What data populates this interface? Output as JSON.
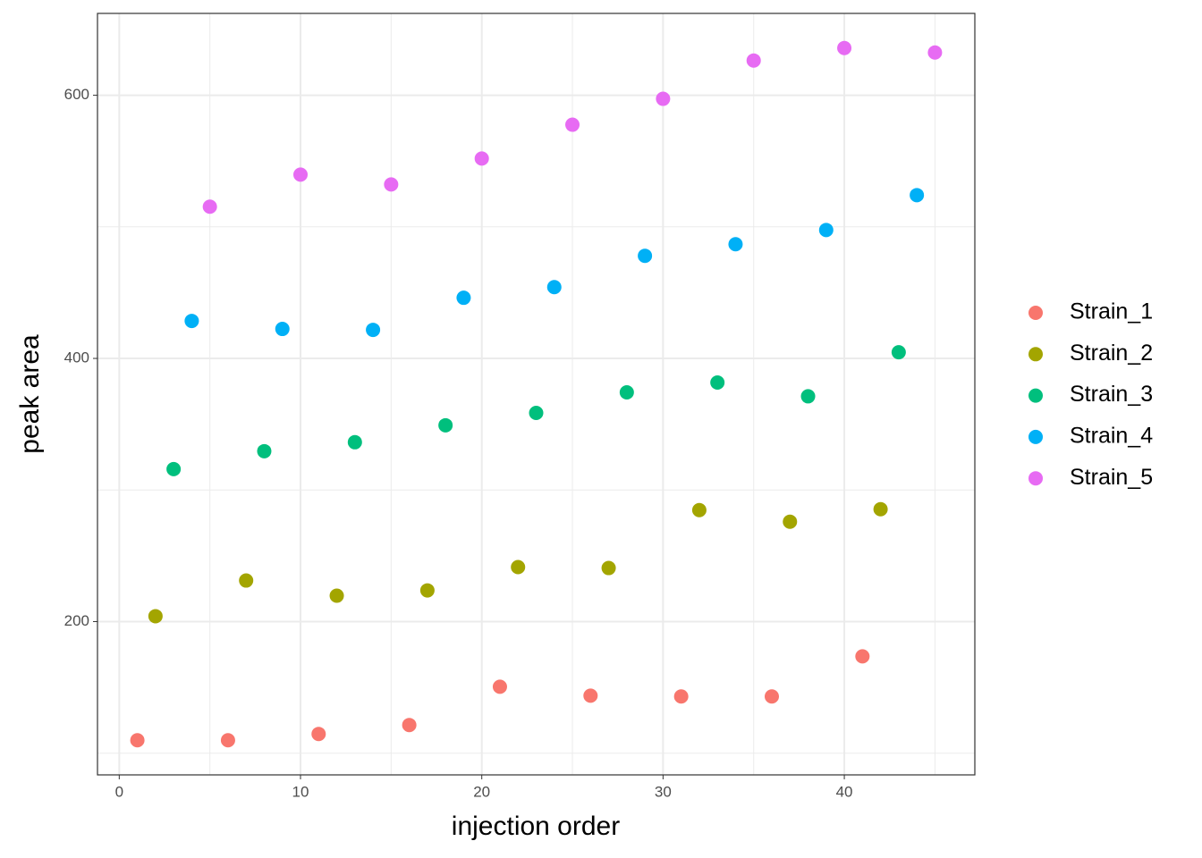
{
  "chart_data": {
    "type": "scatter",
    "x_label": "injection order",
    "y_label": "peak area",
    "xlim": [
      -1.2,
      47.2
    ],
    "ylim": [
      83.5,
      662.2
    ],
    "xticks": [
      0,
      10,
      20,
      30,
      40
    ],
    "yticks": [
      200,
      400,
      600
    ],
    "x_minor_grid": [
      5,
      15,
      25,
      35,
      45
    ],
    "y_minor_grid": [
      100,
      300,
      500
    ],
    "grid": true,
    "legend": "right",
    "series": [
      {
        "name": "Strain_1",
        "color": "#f8766d",
        "x": [
          1,
          6,
          11,
          16,
          21,
          26,
          31,
          36,
          41
        ],
        "values": [
          109.8,
          109.8,
          114.6,
          121.4,
          150.5,
          143.7,
          143.1,
          143.1,
          173.6
        ]
      },
      {
        "name": "Strain_2",
        "color": "#a3a500",
        "x": [
          2,
          7,
          12,
          17,
          22,
          27,
          32,
          37,
          42
        ],
        "values": [
          204.1,
          231.2,
          219.7,
          223.7,
          241.4,
          240.7,
          284.7,
          275.9,
          285.4
        ]
      },
      {
        "name": "Strain_3",
        "color": "#00bf7d",
        "x": [
          3,
          8,
          13,
          18,
          23,
          28,
          33,
          38,
          43
        ],
        "values": [
          315.9,
          329.5,
          336.3,
          349.2,
          358.6,
          374.2,
          381.7,
          371.2,
          404.7
        ]
      },
      {
        "name": "Strain_4",
        "color": "#00b0f6",
        "x": [
          4,
          9,
          14,
          19,
          24,
          29,
          34,
          39,
          44
        ],
        "values": [
          428.5,
          422.4,
          421.7,
          446.1,
          454.2,
          478.0,
          486.8,
          497.6,
          524.1
        ]
      },
      {
        "name": "Strain_5",
        "color": "#e76bf3",
        "x": [
          5,
          10,
          15,
          20,
          25,
          30,
          35,
          40,
          45
        ],
        "values": [
          515.3,
          539.7,
          532.2,
          551.9,
          577.6,
          597.3,
          626.4,
          635.9,
          632.5
        ]
      }
    ]
  }
}
